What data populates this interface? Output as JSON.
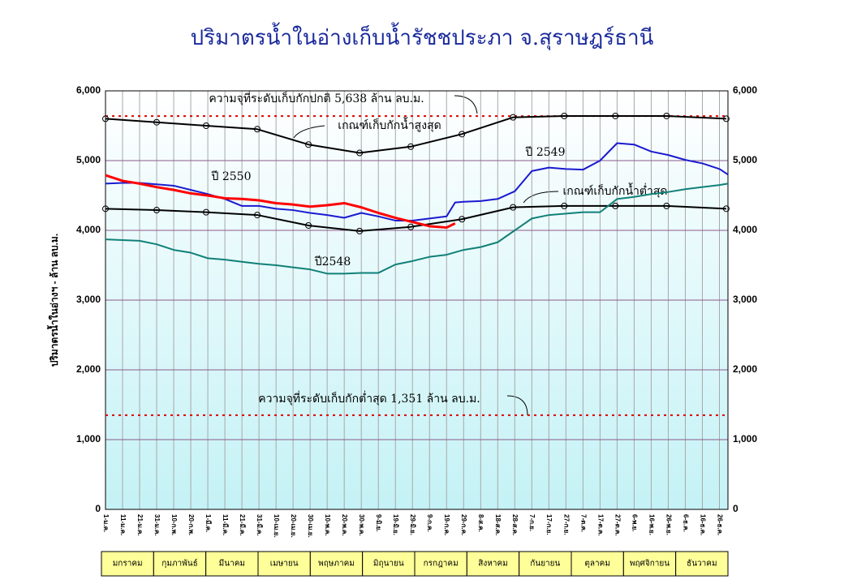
{
  "chart_data": {
    "type": "line",
    "title": "ปริมาตรน้ำในอ่างเก็บน้ำรัชชประภา จ.สุราษฎร์ธานี",
    "y_label": "ปริมาตรน้ำในอ่างฯ - ล้าน ลบ.ม.",
    "xlim": [
      0,
      365
    ],
    "xticks": [
      {
        "value": 0,
        "label": "1-ม.ค."
      },
      {
        "value": 10,
        "label": "11-ม.ค."
      },
      {
        "value": 20,
        "label": "21-ม.ค."
      },
      {
        "value": 30,
        "label": "31-ม.ค."
      },
      {
        "value": 40,
        "label": "10-ก.พ."
      },
      {
        "value": 50,
        "label": "20-ก.พ."
      },
      {
        "value": 60,
        "label": "1-มี.ค."
      },
      {
        "value": 70,
        "label": "11-มี.ค."
      },
      {
        "value": 80,
        "label": "21-มี.ค."
      },
      {
        "value": 90,
        "label": "31-มี.ค."
      },
      {
        "value": 100,
        "label": "10-เม.ย."
      },
      {
        "value": 110,
        "label": "20-เม.ย."
      },
      {
        "value": 120,
        "label": "30-เม.ย."
      },
      {
        "value": 130,
        "label": "10-พ.ค."
      },
      {
        "value": 140,
        "label": "20-พ.ค."
      },
      {
        "value": 150,
        "label": "30-พ.ค."
      },
      {
        "value": 160,
        "label": "9-มิ.ย."
      },
      {
        "value": 170,
        "label": "19-มิ.ย."
      },
      {
        "value": 180,
        "label": "29-มิ.ย."
      },
      {
        "value": 190,
        "label": "9-ก.ค."
      },
      {
        "value": 200,
        "label": "19-ก.ค."
      },
      {
        "value": 210,
        "label": "29-ก.ค."
      },
      {
        "value": 220,
        "label": "8-ส.ค."
      },
      {
        "value": 230,
        "label": "18-ส.ค."
      },
      {
        "value": 240,
        "label": "28-ส.ค."
      },
      {
        "value": 250,
        "label": "7-ก.ย."
      },
      {
        "value": 260,
        "label": "17-ก.ย."
      },
      {
        "value": 270,
        "label": "27-ก.ย."
      },
      {
        "value": 280,
        "label": "7-ต.ค."
      },
      {
        "value": 290,
        "label": "17-ต.ค."
      },
      {
        "value": 300,
        "label": "27-ต.ค."
      },
      {
        "value": 310,
        "label": "6-พ.ย."
      },
      {
        "value": 320,
        "label": "16-พ.ย."
      },
      {
        "value": 330,
        "label": "26-พ.ย."
      },
      {
        "value": 340,
        "label": "6-ธ.ค."
      },
      {
        "value": 350,
        "label": "16-ธ.ค."
      },
      {
        "value": 360,
        "label": "26-ธ.ค."
      }
    ],
    "ylim": [
      0,
      6000
    ],
    "yticks": [
      0,
      {
        "value": 1000,
        "label": "1,000"
      },
      {
        "value": 2000,
        "label": "2,000"
      },
      {
        "value": 3000,
        "label": "3,000"
      },
      {
        "value": 4000,
        "label": "4,000"
      },
      {
        "value": 5000,
        "label": "5,000"
      },
      {
        "value": 6000,
        "label": "6,000"
      }
    ],
    "grid": true,
    "month_labels": [
      "มกราคม",
      "กุมภาพันธ์",
      "มีนาคม",
      "เมษายน",
      "พฤษภาคม",
      "มิถุนายน",
      "กรกฎาคม",
      "สิงหาคม",
      "กันยายน",
      "ตุลาคม",
      "พฤศจิกายน",
      "ธันวาคม"
    ],
    "reference_lines": [
      {
        "value": 5638,
        "label": "ความจุที่ระดับเก็บกักปกติ 5,638 ล้าน ลบ.ม.",
        "color": "#e00000"
      },
      {
        "value": 1351,
        "label": "ความจุที่ระดับเก็บกักต่ำสุด 1,351 ล้าน ลบ.ม.",
        "color": "#e00000"
      }
    ],
    "series": [
      {
        "name": "เกณฑ์เก็บกักน้ำสูงสุด",
        "color": "#000000",
        "markers": true,
        "x": [
          0,
          30,
          59,
          89,
          119,
          149,
          179,
          209,
          239,
          269,
          299,
          329,
          364
        ],
        "values": [
          5600,
          5550,
          5500,
          5450,
          5230,
          5110,
          5200,
          5380,
          5620,
          5640,
          5640,
          5640,
          5600
        ]
      },
      {
        "name": "เกณฑ์เก็บกักน้ำต่ำสุด",
        "color": "#000000",
        "markers": true,
        "x": [
          0,
          30,
          59,
          89,
          119,
          149,
          179,
          209,
          239,
          269,
          299,
          329,
          364
        ],
        "values": [
          4310,
          4290,
          4260,
          4220,
          4070,
          3990,
          4050,
          4160,
          4330,
          4350,
          4350,
          4350,
          4310
        ]
      },
      {
        "name": "ปี 2549",
        "color": "#1a1ad0",
        "markers": false,
        "x": [
          0,
          10,
          20,
          30,
          40,
          50,
          60,
          70,
          80,
          90,
          100,
          110,
          120,
          130,
          140,
          150,
          160,
          170,
          180,
          190,
          200,
          205,
          210,
          220,
          230,
          240,
          250,
          260,
          270,
          280,
          290,
          300,
          310,
          320,
          330,
          340,
          350,
          360,
          365
        ],
        "values": [
          4670,
          4680,
          4680,
          4660,
          4640,
          4580,
          4520,
          4450,
          4350,
          4350,
          4310,
          4290,
          4250,
          4220,
          4180,
          4250,
          4200,
          4140,
          4140,
          4170,
          4200,
          4400,
          4410,
          4420,
          4450,
          4560,
          4850,
          4900,
          4880,
          4870,
          5000,
          5250,
          5230,
          5130,
          5080,
          5010,
          4960,
          4880,
          4800
        ]
      },
      {
        "name": "ปี 2550",
        "color": "#ff0000",
        "markers": false,
        "x": [
          0,
          10,
          20,
          30,
          40,
          50,
          60,
          70,
          80,
          90,
          100,
          110,
          120,
          130,
          140,
          150,
          160,
          170,
          180,
          190,
          200,
          205
        ],
        "values": [
          4790,
          4710,
          4670,
          4620,
          4580,
          4530,
          4500,
          4460,
          4450,
          4430,
          4390,
          4370,
          4340,
          4360,
          4390,
          4330,
          4250,
          4180,
          4120,
          4060,
          4040,
          4100
        ]
      },
      {
        "name": "ปี2548",
        "color": "#108078",
        "markers": false,
        "x": [
          0,
          10,
          20,
          30,
          40,
          50,
          60,
          70,
          80,
          90,
          100,
          110,
          120,
          130,
          140,
          150,
          160,
          170,
          180,
          190,
          200,
          210,
          220,
          230,
          240,
          250,
          260,
          270,
          280,
          290,
          300,
          310,
          320,
          330,
          340,
          350,
          360,
          365
        ],
        "values": [
          3870,
          3860,
          3850,
          3800,
          3720,
          3680,
          3600,
          3580,
          3550,
          3520,
          3500,
          3470,
          3440,
          3380,
          3380,
          3390,
          3390,
          3510,
          3560,
          3620,
          3650,
          3720,
          3760,
          3830,
          4000,
          4170,
          4220,
          4240,
          4260,
          4260,
          4450,
          4480,
          4520,
          4550,
          4590,
          4620,
          4650,
          4670
        ]
      }
    ]
  }
}
